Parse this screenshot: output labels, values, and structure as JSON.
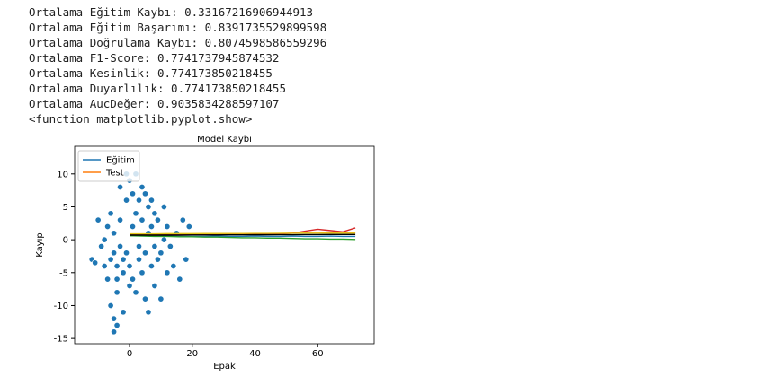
{
  "output_lines": [
    "Ortalama Eğitim Kaybı: 0.33167216906944913",
    "Ortalama Eğitim Başarımı: 0.8391735529899598",
    "Ortalama Doğrulama Kaybı: 0.8074598586559296",
    "Ortalama F1-Score: 0.7741737945874532",
    "Ortalama Kesinlik: 0.774173850218455",
    "Ortalama Duyarlılık: 0.774173850218455",
    "Ortalama AucDeğer: 0.9035834288597107",
    "<function matplotlib.pyplot.show>"
  ],
  "chart_data": {
    "type": "scatter",
    "title": "Model Kaybı",
    "x_label": "Epak",
    "y_label": "Kayıp",
    "xlim": [
      -17.5,
      78
    ],
    "ylim": [
      -15.8,
      14.2
    ],
    "xticks": [
      0,
      20,
      40,
      60
    ],
    "yticks": [
      -15,
      -10,
      -5,
      0,
      5,
      10
    ],
    "legend": "upper left",
    "series": [
      {
        "type": "scatter",
        "color": "#1f77b4",
        "x": [
          -12,
          -11,
          -10,
          -9,
          -8,
          -8,
          -7,
          -7,
          -6,
          -6,
          -6,
          -5,
          -5,
          -5,
          -4,
          -4,
          -4,
          -3,
          -3,
          -3,
          -2,
          -2,
          -2,
          -1,
          -1,
          -1,
          0,
          0,
          0,
          1,
          1,
          1,
          2,
          2,
          2,
          3,
          3,
          3,
          4,
          4,
          4,
          5,
          5,
          5,
          6,
          6,
          6,
          7,
          7,
          7,
          8,
          8,
          8,
          9,
          9,
          10,
          10,
          11,
          11,
          12,
          12,
          13,
          14,
          15,
          16,
          17,
          18,
          19,
          -5,
          -4
        ],
        "values": [
          -3,
          -3.5,
          3,
          -1,
          0,
          -4,
          2,
          -6,
          -3,
          4,
          -10,
          -2,
          1,
          -12,
          -4,
          -6,
          -13,
          -1,
          3,
          8,
          -3,
          -5,
          -11,
          -2,
          6,
          10,
          -4,
          -7,
          9,
          -6,
          2,
          7,
          -8,
          4,
          10,
          -3,
          6,
          -1,
          -5,
          3,
          8,
          -9,
          -2,
          7,
          -11,
          1,
          5,
          -4,
          2,
          6,
          -7,
          -1,
          4,
          -3,
          3,
          -9,
          -2,
          0,
          5,
          -5,
          2,
          -1,
          -4,
          1,
          -6,
          3,
          -3,
          2,
          -14,
          -8
        ]
      },
      {
        "type": "line",
        "name": "Eğitim",
        "color": "#1f77b4",
        "x": [
          0,
          4,
          8,
          12,
          16,
          20,
          24,
          28,
          32,
          36,
          40,
          44,
          48,
          52,
          56,
          60,
          64,
          68,
          72
        ],
        "values": [
          0.6,
          0.6,
          0.55,
          0.55,
          0.5,
          0.5,
          0.5,
          0.55,
          0.5,
          0.5,
          0.55,
          0.5,
          0.5,
          0.55,
          0.5,
          0.5,
          0.55,
          0.5,
          0.5
        ]
      },
      {
        "type": "line",
        "name": "Test",
        "color": "#ff7f0e",
        "x": [
          0,
          4,
          8,
          12,
          16,
          20,
          24,
          28,
          32,
          36,
          40,
          44,
          48,
          52,
          56,
          60,
          64,
          68,
          72
        ],
        "values": [
          0.8,
          0.75,
          0.8,
          0.8,
          0.85,
          0.8,
          0.85,
          0.85,
          0.9,
          0.9,
          0.9,
          0.95,
          0.95,
          1.0,
          1.0,
          1.0,
          1.05,
          1.05,
          1.1
        ]
      },
      {
        "type": "line",
        "color": "#d62728",
        "x": [
          0,
          4,
          8,
          12,
          16,
          20,
          24,
          28,
          32,
          36,
          40,
          44,
          48,
          52,
          56,
          60,
          64,
          68,
          72
        ],
        "values": [
          0.7,
          0.7,
          0.7,
          0.75,
          0.75,
          0.8,
          0.8,
          0.8,
          0.85,
          0.85,
          0.9,
          0.9,
          0.9,
          1.0,
          1.3,
          1.6,
          1.4,
          1.2,
          1.8
        ]
      },
      {
        "type": "line",
        "color": "#2ca02c",
        "x": [
          0,
          4,
          8,
          12,
          16,
          20,
          24,
          28,
          32,
          36,
          40,
          44,
          48,
          52,
          56,
          60,
          64,
          68,
          72
        ],
        "values": [
          0.6,
          0.55,
          0.5,
          0.5,
          0.45,
          0.45,
          0.4,
          0.4,
          0.35,
          0.3,
          0.3,
          0.25,
          0.25,
          0.2,
          0.15,
          0.15,
          0.1,
          0.1,
          0.05
        ]
      },
      {
        "type": "line",
        "color": "#e6c619",
        "x": [
          0,
          4,
          8,
          12,
          16,
          20,
          24,
          28,
          32,
          36,
          40,
          44,
          48,
          52,
          56,
          60,
          64,
          68,
          72
        ],
        "values": [
          0.9,
          0.9,
          0.9,
          0.92,
          0.92,
          0.92,
          0.94,
          0.94,
          0.95,
          0.95,
          0.96,
          0.96,
          0.98,
          0.98,
          1.0,
          1.0,
          1.0,
          1.0,
          1.0
        ]
      },
      {
        "type": "line",
        "color": "#000000",
        "x": [
          0,
          4,
          8,
          12,
          16,
          20,
          24,
          28,
          32,
          36,
          40,
          44,
          48,
          52,
          56,
          60,
          64,
          68,
          72
        ],
        "values": [
          0.7,
          0.7,
          0.7,
          0.7,
          0.7,
          0.72,
          0.72,
          0.72,
          0.74,
          0.74,
          0.75,
          0.75,
          0.76,
          0.76,
          0.78,
          0.78,
          0.8,
          0.8,
          0.8
        ]
      }
    ]
  }
}
